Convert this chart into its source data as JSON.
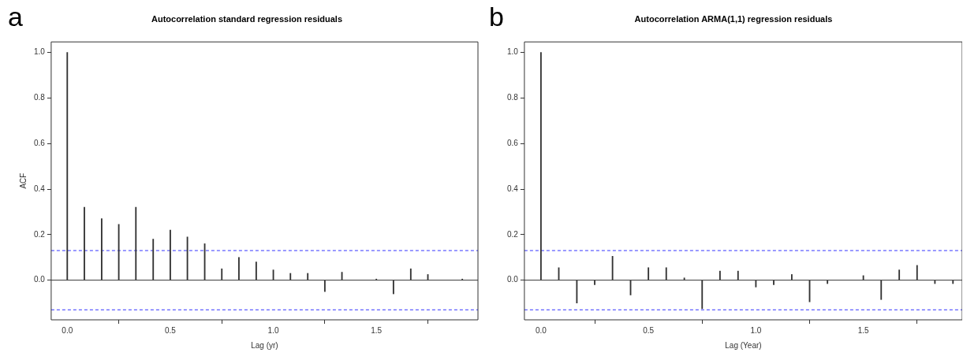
{
  "chart_data": [
    {
      "type": "bar",
      "title": "Autocorrelation standard regression residuals",
      "xlabel": "Lag (yr)",
      "ylabel": "ACF",
      "annotations": [
        "a"
      ],
      "x": [
        0,
        0.083,
        0.167,
        0.25,
        0.333,
        0.417,
        0.5,
        0.583,
        0.667,
        0.75,
        0.833,
        0.917,
        1,
        1.083,
        1.167,
        1.25,
        1.333,
        1.417,
        1.5,
        1.583,
        1.667,
        1.75,
        1.833,
        1.917
      ],
      "series": [
        {
          "color": "#333333",
          "values": [
            1.0,
            0.32,
            0.27,
            0.245,
            0.32,
            0.18,
            0.22,
            0.19,
            0.16,
            0.05,
            0.1,
            0.08,
            0.045,
            0.03,
            0.03,
            -0.05,
            0.035,
            null,
            0.005,
            -0.06,
            0.05,
            0.025,
            null,
            0.005
          ]
        }
      ],
      "xlim": [
        -0.078,
        1.993
      ],
      "ylim": [
        -0.174,
        1.046
      ],
      "xticks": [
        {
          "value": 0,
          "label": "0.0"
        },
        {
          "value": 0.5,
          "label": "0.5"
        },
        {
          "value": 1,
          "label": "1.0"
        },
        {
          "value": 1.5,
          "label": "1.5"
        }
      ],
      "yticks": [
        {
          "value": 0,
          "label": "0.0"
        },
        {
          "value": 0.2,
          "label": "0.2"
        },
        {
          "value": 0.4,
          "label": "0.4"
        },
        {
          "value": 0.6,
          "label": "0.6"
        },
        {
          "value": 0.8,
          "label": "0.8"
        },
        {
          "value": 1,
          "label": "1.0"
        }
      ],
      "ref_lines": [
        {
          "axis": "y",
          "value": 0.13,
          "color": "#3333ff",
          "line_style": "dashed"
        },
        {
          "axis": "y",
          "value": -0.13,
          "color": "#3333ff",
          "line_style": "dashed"
        },
        {
          "axis": "y",
          "value": 0,
          "color": "#333333",
          "line_style": "solid"
        }
      ],
      "grid": false,
      "legend": false
    },
    {
      "type": "bar",
      "title": "Autocorrelation ARMA(1,1) regression residuals",
      "xlabel": "Lag (Year)",
      "annotations": [
        "b"
      ],
      "x": [
        0,
        0.083,
        0.167,
        0.25,
        0.333,
        0.417,
        0.5,
        0.583,
        0.667,
        0.75,
        0.833,
        0.917,
        1,
        1.083,
        1.167,
        1.25,
        1.333,
        1.417,
        1.5,
        1.583,
        1.667,
        1.75,
        1.833,
        1.917
      ],
      "series": [
        {
          "color": "#333333",
          "values": [
            1.0,
            0.055,
            -0.1,
            -0.02,
            0.105,
            -0.065,
            0.055,
            0.055,
            0.01,
            -0.125,
            0.04,
            0.04,
            -0.03,
            -0.02,
            0.025,
            -0.095,
            -0.015,
            null,
            0.02,
            -0.085,
            0.045,
            0.065,
            -0.015,
            -0.015
          ]
        }
      ],
      "xlim": [
        -0.077,
        1.96
      ],
      "ylim": [
        -0.174,
        1.046
      ],
      "xticks": [
        {
          "value": 0,
          "label": "0.0"
        },
        {
          "value": 0.5,
          "label": "0.5"
        },
        {
          "value": 1,
          "label": "1.0"
        },
        {
          "value": 1.5,
          "label": "1.5"
        }
      ],
      "yticks": [
        {
          "value": 0,
          "label": "0.0"
        },
        {
          "value": 0.2,
          "label": "0.2"
        },
        {
          "value": 0.4,
          "label": "0.4"
        },
        {
          "value": 0.6,
          "label": "0.6"
        },
        {
          "value": 0.8,
          "label": "0.8"
        },
        {
          "value": 1,
          "label": "1.0"
        }
      ],
      "ref_lines": [
        {
          "axis": "y",
          "value": 0.13,
          "color": "#3333ff",
          "line_style": "dashed"
        },
        {
          "axis": "y",
          "value": -0.13,
          "color": "#3333ff",
          "line_style": "dashed"
        },
        {
          "axis": "y",
          "value": 0,
          "color": "#333333",
          "line_style": "solid"
        }
      ],
      "grid": false,
      "legend": false
    }
  ]
}
